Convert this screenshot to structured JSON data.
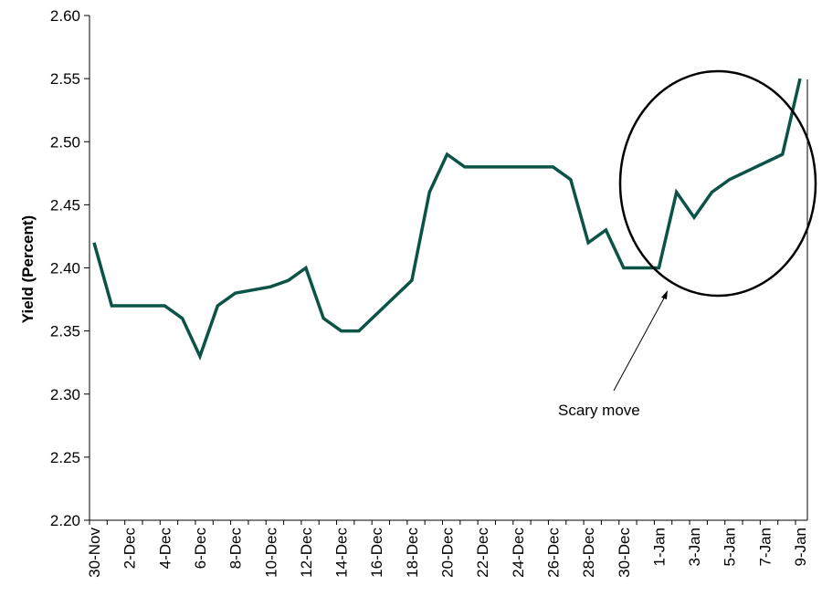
{
  "chart_data": {
    "type": "line",
    "title": "",
    "xlabel": "",
    "ylabel": "Yield (Percent)",
    "ylim": [
      2.2,
      2.6
    ],
    "y_ticks": [
      "2.20",
      "2.25",
      "2.30",
      "2.35",
      "2.40",
      "2.45",
      "2.50",
      "2.55",
      "2.60"
    ],
    "x_tick_labels": [
      "30-Nov",
      "2-Dec",
      "4-Dec",
      "6-Dec",
      "8-Dec",
      "10-Dec",
      "12-Dec",
      "14-Dec",
      "16-Dec",
      "18-Dec",
      "20-Dec",
      "22-Dec",
      "24-Dec",
      "26-Dec",
      "28-Dec",
      "30-Dec",
      "1-Jan",
      "3-Jan",
      "5-Jan",
      "7-Jan",
      "9-Jan"
    ],
    "grid": false,
    "legend": "none",
    "line_color": "#0b5345",
    "series": [
      {
        "values": [
          2.42,
          2.37,
          2.37,
          2.37,
          2.37,
          2.36,
          2.33,
          2.37,
          2.38,
          2.385,
          2.39,
          2.4,
          2.36,
          2.35,
          2.35,
          2.39,
          2.46,
          2.49,
          2.48,
          2.48,
          2.48,
          2.48,
          2.47,
          2.42,
          2.43,
          2.4,
          2.4,
          2.4,
          2.46,
          2.44,
          2.46,
          2.47,
          2.49,
          2.55
        ],
        "x": [
          "30-Nov",
          "1-Dec",
          "2-Dec",
          "3-Dec",
          "4-Dec",
          "5-Dec",
          "6-Dec",
          "7-Dec",
          "8-Dec",
          "10-Dec",
          "11-Dec",
          "12-Dec",
          "13-Dec",
          "14-Dec",
          "15-Dec",
          "18-Dec",
          "19-Dec",
          "20-Dec",
          "21-Dec",
          "22-Dec",
          "25-Dec",
          "26-Dec",
          "27-Dec",
          "28-Dec",
          "29-Dec",
          "30-Dec",
          "31-Dec",
          "1-Jan",
          "2-Jan",
          "3-Jan",
          "4-Jan",
          "5-Jan",
          "8-Jan",
          "9-Jan"
        ]
      }
    ],
    "annotations": [
      {
        "text": "Scary move",
        "points_to": "1-Jan",
        "shape": "ellipse around 1-Jan to 9-Jan"
      }
    ]
  }
}
